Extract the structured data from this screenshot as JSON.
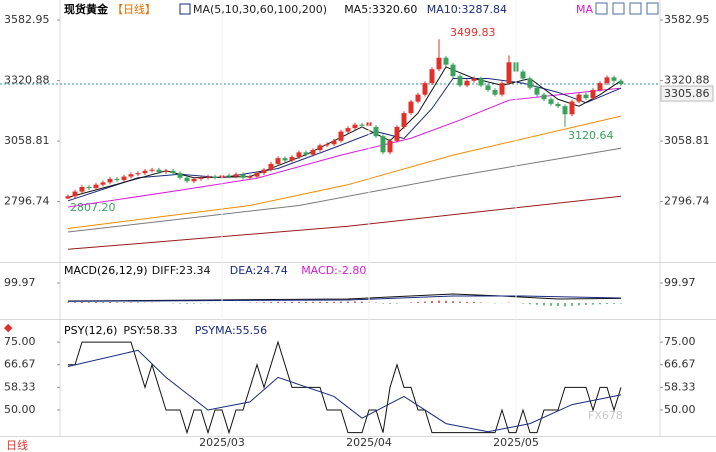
{
  "chart_data": [
    {
      "type": "candlestick",
      "title": "现货黄金",
      "subtitle": "【日线】",
      "legend_title": "MA(5,10,30,60,100,200)",
      "up_color": "#e0302a",
      "down_color": "#3aa35a",
      "last_line_color": "#3a8f9a",
      "ylim": [
        2535,
        3670
      ],
      "yticks": [
        3582.95,
        3320.88,
        3058.81,
        2796.74
      ],
      "grid": false,
      "annotations": [
        "3499.83",
        "3120.64",
        "2807.20"
      ],
      "candles": [
        [
          2810,
          2828,
          2807.2,
          2820
        ],
        [
          2820,
          2848,
          2812,
          2840
        ],
        [
          2840,
          2868,
          2832,
          2860
        ],
        [
          2860,
          2868,
          2847,
          2855
        ],
        [
          2855,
          2878,
          2847,
          2870
        ],
        [
          2870,
          2888,
          2862,
          2880
        ],
        [
          2880,
          2903,
          2872,
          2895
        ],
        [
          2895,
          2903,
          2882,
          2890
        ],
        [
          2890,
          2913,
          2882,
          2905
        ],
        [
          2905,
          2923,
          2897,
          2915
        ],
        [
          2915,
          2928,
          2907,
          2920
        ],
        [
          2920,
          2938,
          2912,
          2930
        ],
        [
          2930,
          2943,
          2922,
          2935
        ],
        [
          2935,
          2943,
          2917,
          2925
        ],
        [
          2925,
          2938,
          2917,
          2930
        ],
        [
          2930,
          2938,
          2912,
          2920
        ],
        [
          2920,
          2928,
          2892,
          2900
        ],
        [
          2900,
          2908,
          2877,
          2885
        ],
        [
          2885,
          2903,
          2877,
          2895
        ],
        [
          2895,
          2908,
          2887,
          2900
        ],
        [
          2900,
          2913,
          2892,
          2905
        ],
        [
          2905,
          2913,
          2892,
          2900
        ],
        [
          2900,
          2918,
          2892,
          2910
        ],
        [
          2910,
          2918,
          2897,
          2905
        ],
        [
          2905,
          2923,
          2897,
          2915
        ],
        [
          2915,
          2923,
          2892,
          2900
        ],
        [
          2900,
          2913,
          2892,
          2905
        ],
        [
          2905,
          2928,
          2897,
          2920
        ],
        [
          2920,
          2943,
          2912,
          2935
        ],
        [
          2935,
          2968,
          2927,
          2960
        ],
        [
          2960,
          2993,
          2952,
          2985
        ],
        [
          2985,
          2993,
          2967,
          2975
        ],
        [
          2975,
          2998,
          2967,
          2990
        ],
        [
          2990,
          3018,
          2982,
          3010
        ],
        [
          3010,
          3018,
          2992,
          3000
        ],
        [
          3000,
          3028,
          2992,
          3020
        ],
        [
          3020,
          3048,
          3012,
          3040
        ],
        [
          3040,
          3053,
          3032,
          3045
        ],
        [
          3045,
          3068,
          3037,
          3060
        ],
        [
          3060,
          3108,
          3052,
          3100
        ],
        [
          3100,
          3123,
          3092,
          3115
        ],
        [
          3115,
          3138,
          3107,
          3130
        ],
        [
          3130,
          3138,
          3117,
          3125
        ],
        [
          3125,
          3148,
          3117,
          3140
        ],
        [
          3120,
          3128,
          3072,
          3080
        ],
        [
          3080,
          3088,
          3002,
          3010
        ],
        [
          3010,
          3068,
          3002,
          3060
        ],
        [
          3060,
          3128,
          3052,
          3120
        ],
        [
          3120,
          3188,
          3112,
          3180
        ],
        [
          3180,
          3238,
          3172,
          3230
        ],
        [
          3230,
          3268,
          3222,
          3260
        ],
        [
          3260,
          3318,
          3252,
          3310
        ],
        [
          3310,
          3378,
          3302,
          3370
        ],
        [
          3370,
          3499.83,
          3362,
          3420
        ],
        [
          3420,
          3428,
          3382,
          3390
        ],
        [
          3390,
          3398,
          3332,
          3340
        ],
        [
          3340,
          3348,
          3292,
          3300
        ],
        [
          3300,
          3328,
          3292,
          3320
        ],
        [
          3320,
          3338,
          3312,
          3330
        ],
        [
          3330,
          3338,
          3292,
          3300
        ],
        [
          3300,
          3308,
          3272,
          3280
        ],
        [
          3280,
          3288,
          3252,
          3260
        ],
        [
          3260,
          3318,
          3252,
          3310
        ],
        [
          3310,
          3430,
          3302,
          3400
        ],
        [
          3400,
          3408,
          3352,
          3360
        ],
        [
          3360,
          3368,
          3322,
          3330
        ],
        [
          3330,
          3338,
          3282,
          3290
        ],
        [
          3290,
          3298,
          3252,
          3260
        ],
        [
          3260,
          3268,
          3232,
          3240
        ],
        [
          3240,
          3248,
          3212,
          3220
        ],
        [
          3220,
          3228,
          3202,
          3210
        ],
        [
          3210,
          3218,
          3120.64,
          3175
        ],
        [
          3175,
          3238,
          3167,
          3230
        ],
        [
          3230,
          3268,
          3222,
          3260
        ],
        [
          3260,
          3268,
          3237,
          3245
        ],
        [
          3245,
          3288,
          3237,
          3280
        ],
        [
          3280,
          3318,
          3272,
          3310
        ],
        [
          3310,
          3343,
          3302,
          3335
        ],
        [
          3335,
          3343,
          3312,
          3320
        ],
        [
          3320,
          3328,
          3298,
          3305.86
        ]
      ],
      "series": [
        {
          "name": "MA5:3320.60",
          "color": "#111111",
          "x": [
            0,
            8,
            14,
            18,
            26,
            34,
            42,
            46,
            50,
            54,
            58,
            62,
            66,
            70,
            73,
            76,
            79
          ],
          "values": [
            2815,
            2880,
            2930,
            2900,
            2905,
            3000,
            3120,
            3060,
            3180,
            3380,
            3330,
            3300,
            3330,
            3240,
            3210,
            3260,
            3320.6
          ]
        },
        {
          "name": "MA10:3287.84",
          "color": "#1a2a80",
          "x": [
            0,
            10,
            16,
            22,
            30,
            38,
            44,
            48,
            52,
            55,
            60,
            65,
            70,
            74,
            79
          ],
          "values": [
            2800,
            2900,
            2915,
            2900,
            2940,
            3030,
            3100,
            3070,
            3200,
            3330,
            3330,
            3310,
            3270,
            3225,
            3287.84
          ]
        },
        {
          "name": "MA",
          "color": "#d81ad8",
          "x": [
            0,
            16,
            27,
            39,
            49,
            56,
            63,
            71,
            79
          ],
          "values": [
            2773,
            2846,
            2898,
            2998,
            3071,
            3150,
            3236,
            3262,
            3288
          ]
        },
        {
          "color": "#f08c00",
          "x": [
            0,
            26,
            40,
            55,
            79
          ],
          "values": [
            2680,
            2780,
            2870,
            2998,
            3167
          ]
        },
        {
          "color": "#7a7a7a",
          "x": [
            0,
            33,
            55,
            79
          ],
          "values": [
            2665,
            2780,
            2905,
            3028
          ]
        },
        {
          "color": "#9a1a1a",
          "x": [
            0,
            40,
            79
          ],
          "values": [
            2590,
            2690,
            2820
          ]
        }
      ]
    },
    {
      "type": "macd",
      "title": "MACD(26,12,9)",
      "ylim": [
        -75,
        200
      ],
      "yticks": [
        99.97
      ],
      "up_color": "#e0302a",
      "down_color": "#3aa35a",
      "series": [
        {
          "name": "DIFF:23.34",
          "color": "#111111",
          "x": [
            0,
            20,
            40,
            55,
            62,
            70,
            79
          ],
          "values": [
            10,
            15,
            20,
            45,
            35,
            20,
            23.34
          ]
        },
        {
          "name": "DEA:24.74",
          "color": "#1a2a80",
          "x": [
            0,
            20,
            40,
            55,
            65,
            79
          ],
          "values": [
            8,
            12,
            15,
            35,
            35,
            24.74
          ]
        },
        {
          "name": "MACD:-2.80",
          "color": "#d81ad8",
          "values": [
            3,
            4,
            5,
            4,
            5,
            4,
            5,
            3,
            4,
            3,
            3,
            2,
            2,
            1,
            0,
            -2,
            -3,
            -4,
            -3,
            -2,
            -2,
            -1,
            -1,
            0,
            1,
            1,
            2,
            3,
            4,
            5,
            6,
            5,
            5,
            6,
            5,
            6,
            6,
            5,
            6,
            7,
            7,
            8,
            7,
            6,
            2,
            -3,
            -4,
            -3,
            0,
            3,
            5,
            7,
            10,
            12,
            11,
            9,
            7,
            6,
            5,
            3,
            1,
            -2,
            -1,
            2,
            -1,
            -3,
            -6,
            -9,
            -12,
            -14,
            -15,
            -17,
            -14,
            -12,
            -10,
            -8,
            -6,
            -5,
            -4,
            -2.8
          ]
        }
      ]
    },
    {
      "type": "psy",
      "title": "PSY(12,6)",
      "ylim": [
        40.8,
        82.4
      ],
      "yticks": [
        {
          "value": 75,
          "label": "75.00"
        },
        66.67,
        58.33,
        {
          "value": 50,
          "label": "50.00"
        }
      ],
      "xticks": [
        {
          "value": 22,
          "label": "2025/03"
        },
        {
          "value": 43,
          "label": "2025/04"
        },
        {
          "value": 64,
          "label": "2025/05"
        }
      ],
      "period_label": "日线",
      "watermark": "FX678",
      "series": [
        {
          "name": "PSY:58.33",
          "color": "#111111",
          "values": [
            66.67,
            66.67,
            75,
            75,
            75,
            75,
            75,
            75,
            75,
            75,
            66.67,
            58.33,
            66.67,
            58.33,
            50,
            50,
            50,
            41.67,
            50,
            50,
            41.67,
            50,
            50,
            41.67,
            50,
            50,
            58.33,
            66.67,
            58.33,
            66.67,
            75,
            66.67,
            58.33,
            58.33,
            58.33,
            58.33,
            58.33,
            50,
            50,
            50,
            41.67,
            41.67,
            41.67,
            50,
            50,
            41.67,
            58.33,
            66.67,
            58.33,
            58.33,
            50,
            50,
            41.67,
            41.67,
            41.67,
            41.67,
            41.67,
            41.67,
            41.67,
            41.67,
            41.67,
            41.67,
            50,
            41.67,
            41.67,
            50,
            41.67,
            41.67,
            50,
            50,
            50,
            58.33,
            58.33,
            58.33,
            58.33,
            50,
            58.33,
            58.33,
            50,
            58.33
          ]
        },
        {
          "name": "PSYMA:55.56",
          "color": "#1a2a80",
          "x": [
            0,
            10,
            14,
            20,
            26,
            30,
            38,
            42,
            48,
            54,
            60,
            66,
            72,
            79
          ],
          "values": [
            66,
            72,
            62,
            50,
            53,
            62,
            55,
            47,
            55,
            45,
            42,
            45,
            52,
            55.56
          ]
        }
      ]
    }
  ]
}
